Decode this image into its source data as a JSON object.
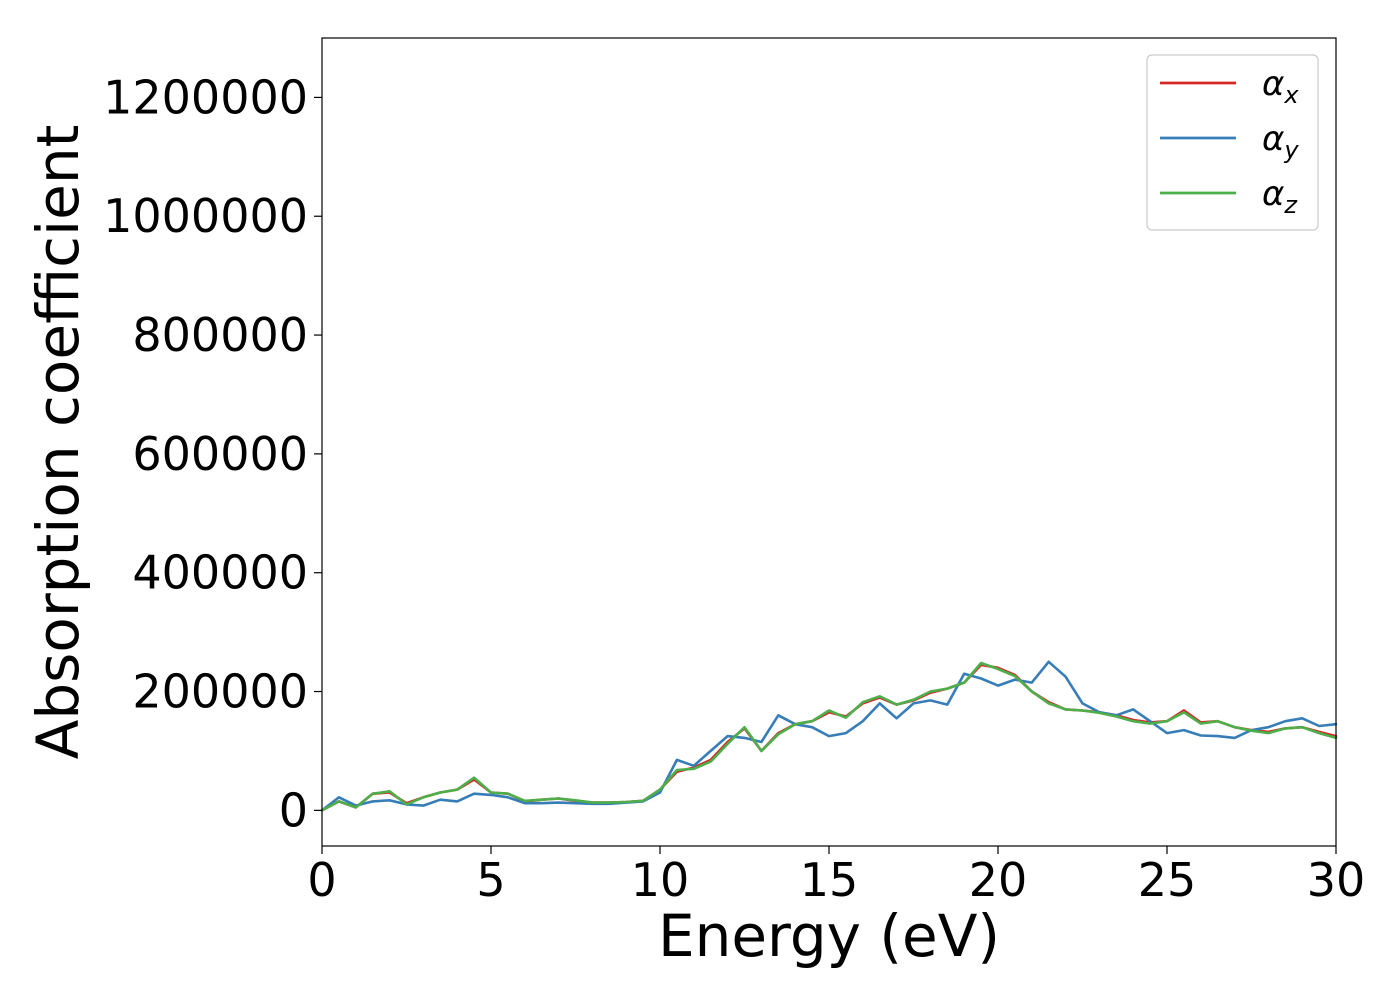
{
  "chart_data": {
    "type": "line",
    "title": "",
    "xlabel": "Energy (eV)",
    "ylabel": "Absorption coefficient",
    "xlim": [
      0,
      30
    ],
    "ylim": [
      -60000,
      1300000
    ],
    "xticks": [
      0,
      5,
      10,
      15,
      20,
      25,
      30
    ],
    "xtick_labels": [
      "0",
      "5",
      "10",
      "15",
      "20",
      "25",
      "30"
    ],
    "yticks": [
      0,
      200000,
      400000,
      600000,
      800000,
      1000000,
      1200000
    ],
    "ytick_labels": [
      "0",
      "200000",
      "400000",
      "600000",
      "800000",
      "1000000",
      "1200000"
    ],
    "grid": false,
    "legend_position": "top-right",
    "x": [
      0,
      0.5,
      1,
      1.5,
      2,
      2.5,
      3,
      3.5,
      4,
      4.5,
      5,
      5.5,
      6,
      6.5,
      7,
      7.5,
      8,
      8.5,
      9,
      9.5,
      10,
      10.5,
      11,
      11.5,
      12,
      12.5,
      13,
      13.5,
      14,
      14.5,
      15,
      15.5,
      16,
      16.5,
      17,
      17.5,
      18,
      18.5,
      19,
      19.5,
      20,
      20.5,
      21,
      21.5,
      22,
      22.5,
      23,
      23.5,
      24,
      24.5,
      25,
      25.5,
      26,
      26.5,
      27,
      27.5,
      28,
      28.5,
      29,
      29.5,
      30
    ],
    "series": [
      {
        "name": "αx",
        "label_base": "α",
        "label_sub": "x",
        "color": "#d62728",
        "values": [
          0,
          15000,
          5000,
          28000,
          30000,
          12000,
          22000,
          30000,
          35000,
          52000,
          30000,
          28000,
          15000,
          18000,
          20000,
          16000,
          13000,
          13000,
          14000,
          16000,
          35000,
          65000,
          72000,
          85000,
          115000,
          138000,
          100000,
          130000,
          145000,
          150000,
          165000,
          158000,
          180000,
          190000,
          178000,
          185000,
          198000,
          205000,
          215000,
          245000,
          240000,
          228000,
          200000,
          182000,
          170000,
          168000,
          165000,
          160000,
          152000,
          148000,
          150000,
          168000,
          148000,
          150000,
          140000,
          135000,
          132000,
          138000,
          140000,
          132000,
          125000
        ]
      },
      {
        "name": "αy",
        "label_base": "α",
        "label_sub": "y",
        "color": "#377eb8",
        "values": [
          0,
          22000,
          8000,
          15000,
          17000,
          10000,
          8000,
          18000,
          15000,
          28000,
          26000,
          22000,
          12000,
          12000,
          13000,
          12000,
          11000,
          11000,
          13000,
          15000,
          30000,
          85000,
          75000,
          100000,
          125000,
          122000,
          115000,
          160000,
          145000,
          140000,
          125000,
          130000,
          150000,
          180000,
          155000,
          180000,
          185000,
          178000,
          230000,
          222000,
          210000,
          220000,
          215000,
          250000,
          225000,
          180000,
          165000,
          160000,
          170000,
          150000,
          130000,
          135000,
          126000,
          125000,
          122000,
          135000,
          140000,
          150000,
          155000,
          142000,
          145000
        ]
      },
      {
        "name": "αz",
        "label_base": "α",
        "label_sub": "z",
        "color": "#4daf4a",
        "values": [
          0,
          15000,
          5000,
          28000,
          32000,
          10000,
          22000,
          30000,
          35000,
          55000,
          30000,
          28000,
          16000,
          18000,
          20000,
          17000,
          13000,
          13000,
          14000,
          16000,
          35000,
          68000,
          70000,
          82000,
          112000,
          140000,
          100000,
          128000,
          145000,
          150000,
          168000,
          156000,
          182000,
          192000,
          178000,
          186000,
          200000,
          205000,
          215000,
          248000,
          238000,
          226000,
          200000,
          180000,
          170000,
          168000,
          164000,
          158000,
          150000,
          146000,
          150000,
          165000,
          146000,
          150000,
          140000,
          134000,
          130000,
          138000,
          140000,
          130000,
          122000
        ]
      }
    ]
  }
}
